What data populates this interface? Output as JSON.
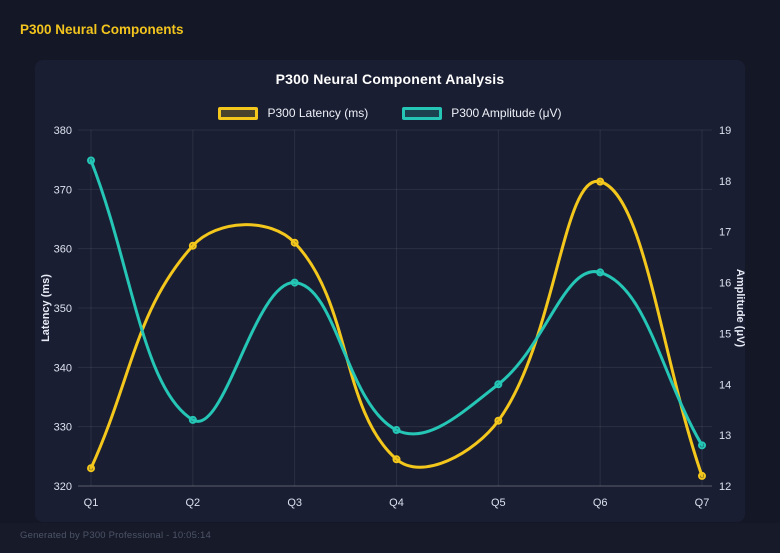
{
  "header": {
    "title": "P300 Neural Components"
  },
  "chart_data": {
    "type": "line",
    "title": "P300 Neural Component Analysis",
    "categories": [
      "Q1",
      "Q2",
      "Q3",
      "Q4",
      "Q5",
      "Q6",
      "Q7"
    ],
    "series": [
      {
        "name": "P300 Latency (ms)",
        "yaxis": "left",
        "color": "#f3c71c",
        "values": [
          323.0,
          360.5,
          361.0,
          324.5,
          331.0,
          371.3,
          321.7
        ]
      },
      {
        "name": "P300 Amplitude (μV)",
        "yaxis": "right",
        "color": "#25c6b6",
        "values": [
          18.4,
          13.3,
          16.0,
          13.1,
          14.0,
          16.2,
          12.8
        ]
      }
    ],
    "left_axis": {
      "title": "Latency (ms)",
      "min": 320,
      "max": 380,
      "ticks": [
        380,
        370,
        360,
        350,
        340,
        330,
        320
      ]
    },
    "right_axis": {
      "title": "Amplitude (μV)",
      "min": 12,
      "max": 19,
      "ticks": [
        19,
        18,
        17,
        16,
        15,
        14,
        13,
        12
      ]
    },
    "grid": true,
    "legend_position": "top",
    "curve_tension": 0.4
  },
  "footer": {
    "text": "Generated by P300 Professional - 10:05:14"
  }
}
